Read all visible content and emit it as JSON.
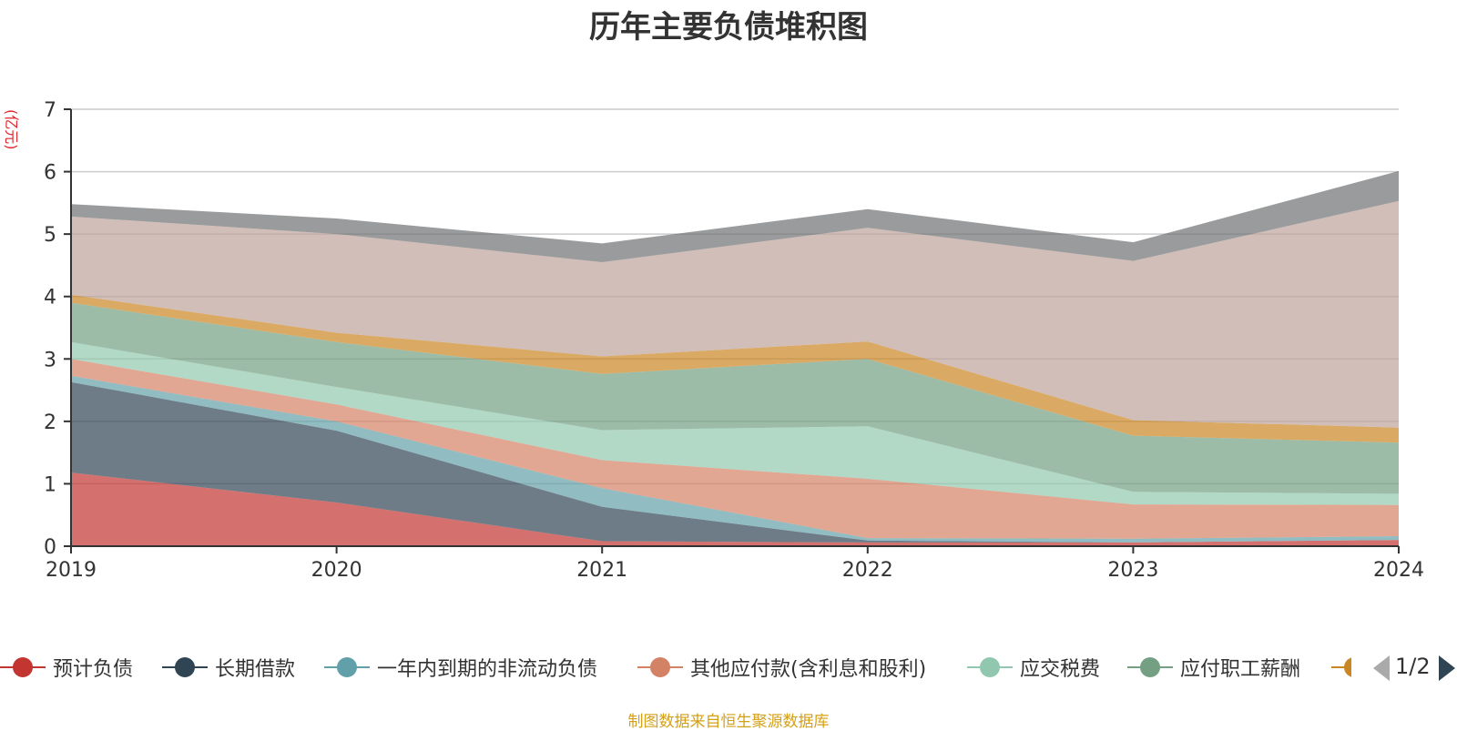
{
  "title": "历年主要负债堆积图",
  "unit_label": "(亿元)",
  "source_note": "制图数据来自恒生聚源数据库",
  "pager": {
    "text": "1/2"
  },
  "chart_data": {
    "type": "area",
    "stacked": true,
    "x": [
      "2019",
      "2020",
      "2021",
      "2022",
      "2023",
      "2024"
    ],
    "ylim": [
      0,
      7
    ],
    "yticks": [
      0,
      1,
      2,
      3,
      4,
      5,
      6,
      7
    ],
    "grid": true,
    "series": [
      {
        "name": "预计负债",
        "color": "#c23531",
        "values": [
          1.18,
          0.7,
          0.08,
          0.06,
          0.06,
          0.1
        ]
      },
      {
        "name": "长期借款",
        "color": "#2f4554",
        "values": [
          1.45,
          1.15,
          0.55,
          0.03,
          0.0,
          0.0
        ]
      },
      {
        "name": "一年内到期的非流动负债",
        "color": "#61a0a8",
        "values": [
          0.1,
          0.15,
          0.3,
          0.04,
          0.06,
          0.06
        ]
      },
      {
        "name": "其他应付款(含利息和股利)",
        "color": "#d48265",
        "values": [
          0.27,
          0.27,
          0.45,
          0.95,
          0.55,
          0.5
        ]
      },
      {
        "name": "应交税费",
        "color": "#91c7ae",
        "values": [
          0.27,
          0.28,
          0.48,
          0.84,
          0.2,
          0.18
        ]
      },
      {
        "name": "应付职工薪酬",
        "color": "#749f83",
        "values": [
          0.63,
          0.72,
          0.9,
          1.08,
          0.9,
          0.82
        ]
      },
      {
        "name": "",
        "color": "#ca8622",
        "values": [
          0.13,
          0.15,
          0.28,
          0.28,
          0.25,
          0.24
        ]
      },
      {
        "name": "",
        "color": "#bda29a",
        "values": [
          1.25,
          1.58,
          1.51,
          1.82,
          2.55,
          3.63
        ]
      },
      {
        "name": "",
        "color": "#6e7074",
        "values": [
          0.2,
          0.25,
          0.3,
          0.3,
          0.3,
          0.48
        ]
      }
    ]
  }
}
